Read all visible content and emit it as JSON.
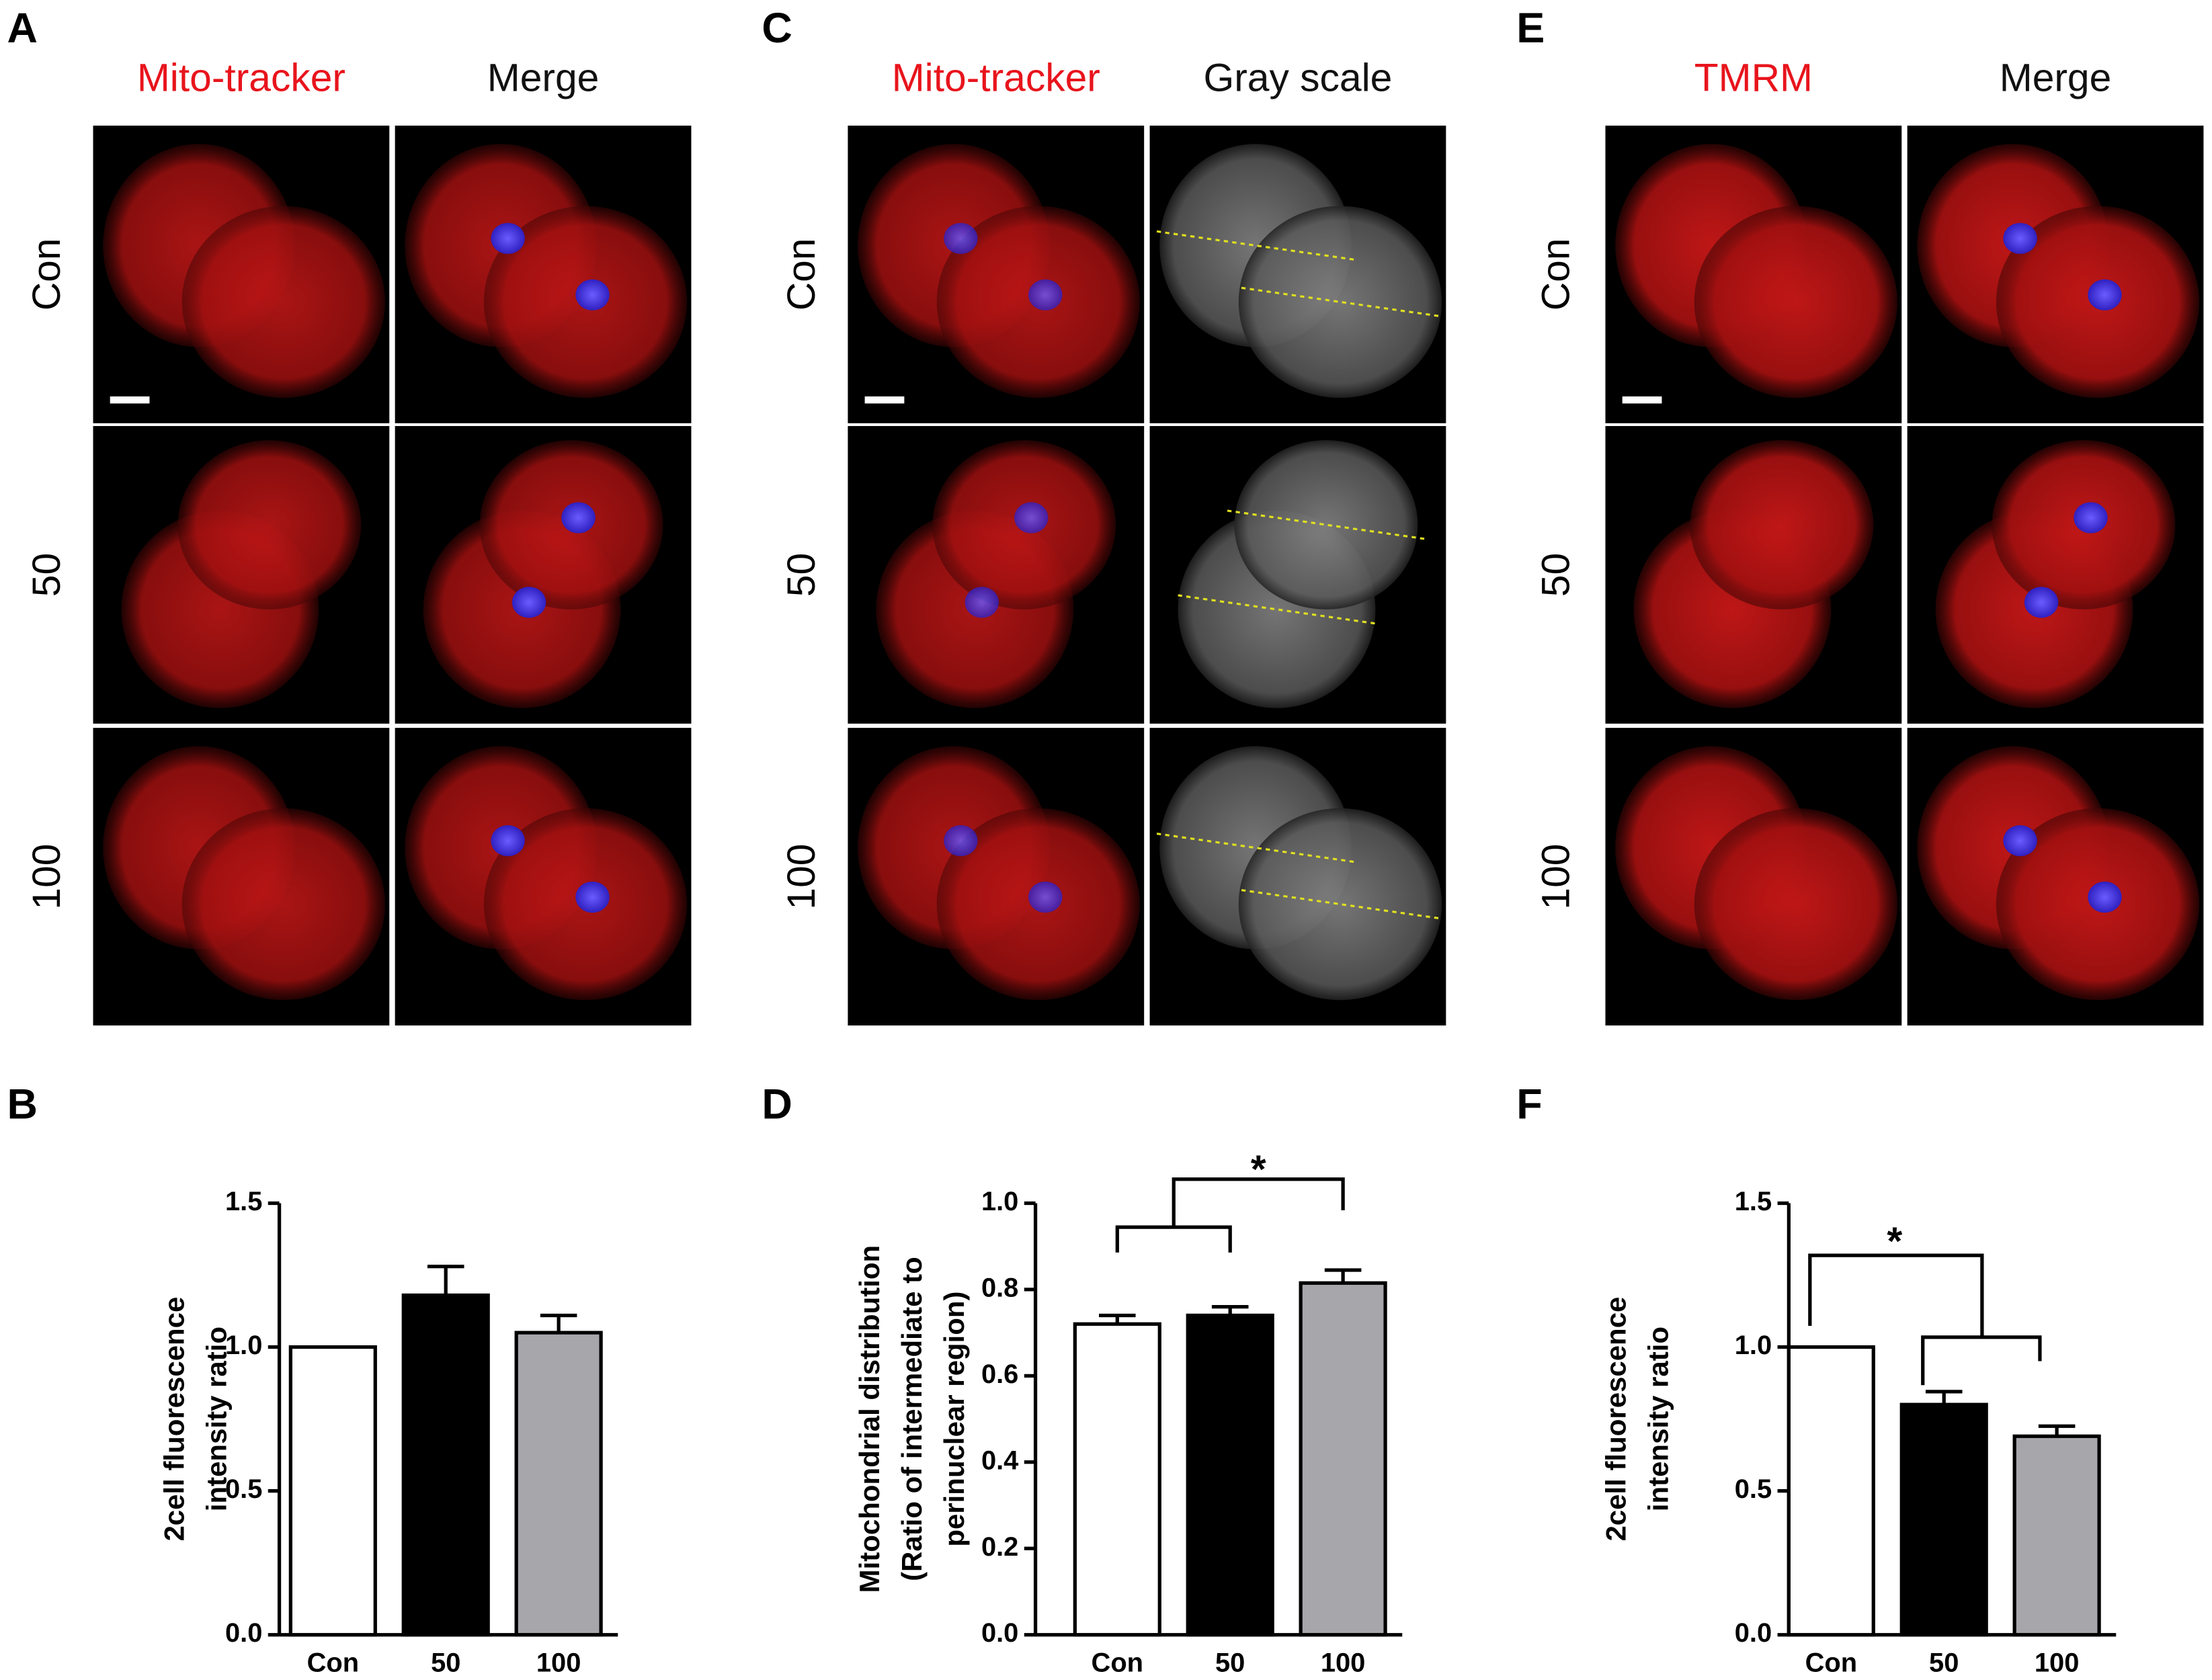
{
  "panel_labels": [
    "A",
    "B",
    "C",
    "D",
    "E",
    "F"
  ],
  "image_panels": [
    {
      "columns": [
        "Mito-tracker",
        "Merge"
      ],
      "column_colors": [
        "#e8141c",
        "#111111"
      ],
      "rows": [
        "Con",
        "50",
        "100"
      ]
    },
    {
      "columns": [
        "Mito-tracker",
        "Gray scale"
      ],
      "column_colors": [
        "#e8141c",
        "#111111"
      ],
      "rows": [
        "Con",
        "50",
        "100"
      ]
    },
    {
      "columns": [
        "TMRM",
        "Merge"
      ],
      "column_colors": [
        "#e8141c",
        "#111111"
      ],
      "rows": [
        "Con",
        "50",
        "100"
      ]
    }
  ],
  "chart_data": [
    {
      "type": "bar",
      "ylabel": [
        "2cell fluorescence",
        "intensity ratio"
      ],
      "categories": [
        "Con",
        "50",
        "100"
      ],
      "values": [
        1.0,
        1.18,
        1.05
      ],
      "errors": [
        null,
        0.1,
        0.06
      ],
      "colors": [
        "#ffffff",
        "#000000",
        "#a6a6ab"
      ],
      "ylim": [
        0,
        1.5
      ],
      "yticks": [
        {
          "value": 0,
          "label": "0.0"
        },
        {
          "value": 0.5,
          "label": "0.5"
        },
        {
          "value": 1,
          "label": "1.0"
        },
        {
          "value": 1.5,
          "label": "1.5"
        }
      ]
    },
    {
      "type": "bar",
      "ylabel": [
        "Mitochondrial distribution",
        "(Ratio of intermediate to",
        "perinuclear region)"
      ],
      "categories": [
        "Con",
        "50",
        "100"
      ],
      "values": [
        0.72,
        0.74,
        0.815
      ],
      "errors": [
        0.02,
        0.02,
        0.03
      ],
      "colors": [
        "#ffffff",
        "#000000",
        "#a6a6ab"
      ],
      "annotation": "*",
      "ylim": [
        0,
        1.0
      ],
      "yticks": [
        {
          "value": 0,
          "label": "0.0"
        },
        0.2,
        0.4,
        0.6,
        0.8,
        {
          "value": 1,
          "label": "1.0"
        }
      ]
    },
    {
      "type": "bar",
      "ylabel": [
        "2cell fluorescence",
        "intensity ratio"
      ],
      "categories": [
        "Con",
        "50",
        "100"
      ],
      "values": [
        1.0,
        0.8,
        0.69
      ],
      "errors": [
        null,
        0.045,
        0.035
      ],
      "colors": [
        "#ffffff",
        "#000000",
        "#a6a6ab"
      ],
      "annotation": "*",
      "ylim": [
        0,
        1.5
      ],
      "yticks": [
        {
          "value": 0,
          "label": "0.0"
        },
        {
          "value": 0.5,
          "label": "0.5"
        },
        {
          "value": 1,
          "label": "1.0"
        },
        {
          "value": 1.5,
          "label": "1.5"
        }
      ]
    }
  ]
}
